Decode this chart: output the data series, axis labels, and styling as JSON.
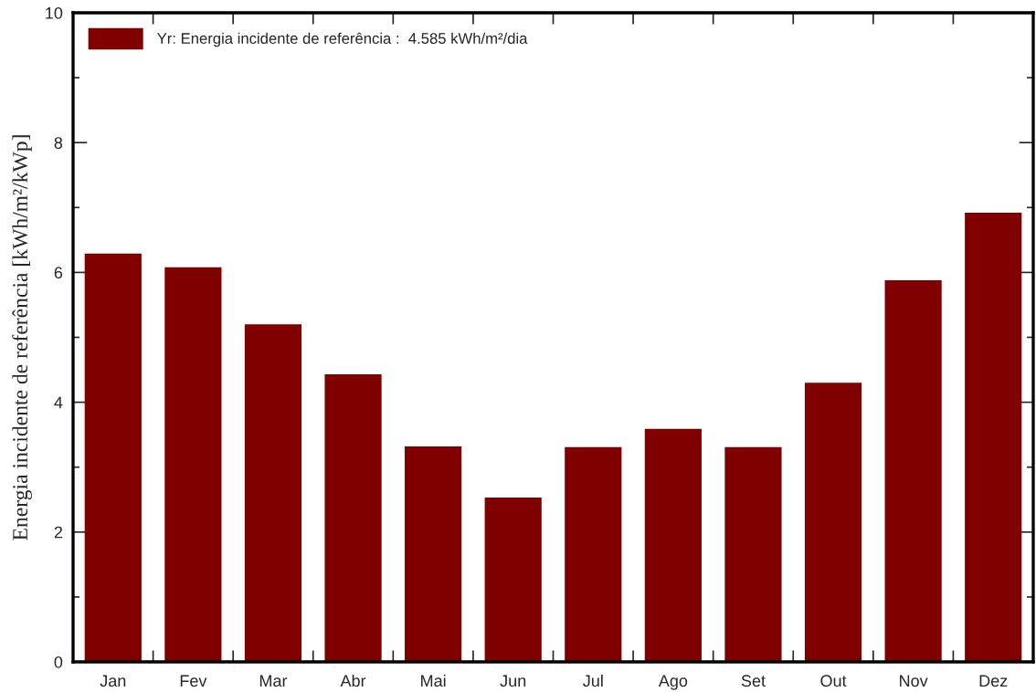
{
  "chart_data": {
    "type": "bar",
    "ylabel": "Energia incidente de referência [kWh/m²/kWp]",
    "categories": [
      "Jan",
      "Fev",
      "Mar",
      "Abr",
      "Mai",
      "Jun",
      "Jul",
      "Ago",
      "Set",
      "Out",
      "Nov",
      "Dez"
    ],
    "series": [
      {
        "name": "Yr: Energia incidente de referência :  4.585 kWh/m²/dia",
        "color": "#800000",
        "values": [
          6.29,
          6.08,
          5.2,
          4.43,
          3.32,
          2.53,
          3.31,
          3.59,
          3.31,
          4.3,
          5.88,
          6.92
        ]
      }
    ],
    "ylim": [
      0,
      10
    ],
    "yticks": [
      0,
      {
        "value": 1,
        "label": null
      },
      2,
      {
        "value": 3,
        "label": null
      },
      4,
      {
        "value": 5,
        "label": null
      },
      6,
      {
        "value": 7,
        "label": null
      },
      8,
      {
        "value": 9,
        "label": null
      },
      10
    ],
    "legend": "top left"
  }
}
